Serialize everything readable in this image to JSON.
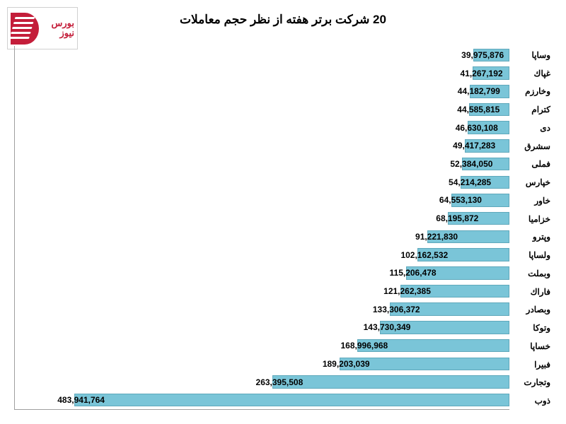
{
  "logo_text": "بورس نیوز",
  "title": "20 شرکت برتر هفته از نظر حجم معاملات",
  "chart": {
    "type": "bar-horizontal",
    "bar_color": "#7ac5d8",
    "bar_border_color": "#5fa8bb",
    "axis_color": "#9e9e9e",
    "background_color": "#ffffff",
    "label_fontsize": 12,
    "title_fontsize": 17,
    "max_value": 550000000,
    "rows": [
      {
        "label": "وساپا",
        "value": 39975876,
        "display": "39,975,876"
      },
      {
        "label": "غپاك",
        "value": 41267192,
        "display": "41,267,192"
      },
      {
        "label": "وخارزم",
        "value": 44182799,
        "display": "44,182,799"
      },
      {
        "label": "كترام",
        "value": 44585815,
        "display": "44,585,815"
      },
      {
        "label": "دی",
        "value": 46630108,
        "display": "46,630,108"
      },
      {
        "label": "سشرق",
        "value": 49417283,
        "display": "49,417,283"
      },
      {
        "label": "فملی",
        "value": 52384050,
        "display": "52,384,050"
      },
      {
        "label": "خپارس",
        "value": 54214285,
        "display": "54,214,285"
      },
      {
        "label": "خاور",
        "value": 64553130,
        "display": "64,553,130"
      },
      {
        "label": "خزامیا",
        "value": 68195872,
        "display": "68,195,872"
      },
      {
        "label": "وپترو",
        "value": 91221830,
        "display": "91,221,830"
      },
      {
        "label": "ولساپا",
        "value": 102162532,
        "display": "102,162,532"
      },
      {
        "label": "وبملت",
        "value": 115206478,
        "display": "115,206,478"
      },
      {
        "label": "فاراك",
        "value": 121262385,
        "display": "121,262,385"
      },
      {
        "label": "وبصادر",
        "value": 133306372,
        "display": "133,306,372"
      },
      {
        "label": "وتوكا",
        "value": 143730349,
        "display": "143,730,349"
      },
      {
        "label": "خساپا",
        "value": 168996968,
        "display": "168,996,968"
      },
      {
        "label": "فبیرا",
        "value": 189203039,
        "display": "189,203,039"
      },
      {
        "label": "وتجارت",
        "value": 263395508,
        "display": "263,395,508"
      },
      {
        "label": "ذوب",
        "value": 483941764,
        "display": "483,941,764"
      }
    ]
  }
}
